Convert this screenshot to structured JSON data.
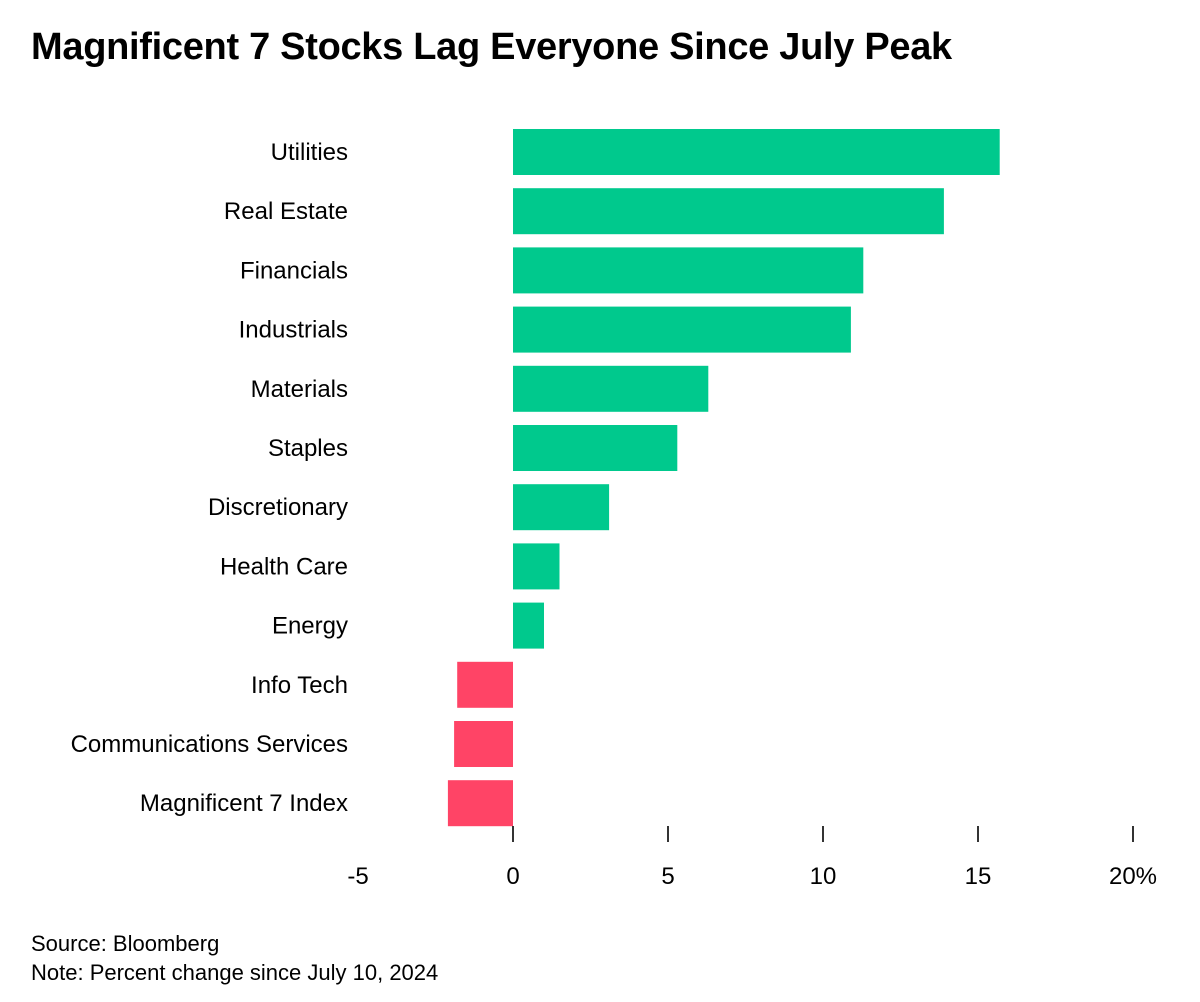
{
  "chart_data": {
    "type": "bar",
    "orientation": "horizontal",
    "title": "Magnificent 7 Stocks Lag Everyone Since July Peak",
    "categories": [
      "Utilities",
      "Real Estate",
      "Financials",
      "Industrials",
      "Materials",
      "Staples",
      "Discretionary",
      "Health Care",
      "Energy",
      "Info Tech",
      "Communications Services",
      "Magnificent 7 Index"
    ],
    "values": [
      15.7,
      13.9,
      11.3,
      10.9,
      6.3,
      5.3,
      3.1,
      1.5,
      1.0,
      -1.8,
      -1.9,
      -2.1
    ],
    "xlim": [
      -5,
      20
    ],
    "xticks": [
      -5,
      0,
      5,
      10,
      15,
      20
    ],
    "xtick_labels": [
      "-5",
      "0",
      "5",
      "10",
      "15",
      "20%"
    ],
    "xlabel": "",
    "ylabel": "",
    "grid": false,
    "colors": {
      "positive": "#00c98d",
      "negative": "#ff4466"
    }
  },
  "footer": {
    "source": "Source: Bloomberg",
    "note": "Note: Percent change since July 10, 2024"
  }
}
